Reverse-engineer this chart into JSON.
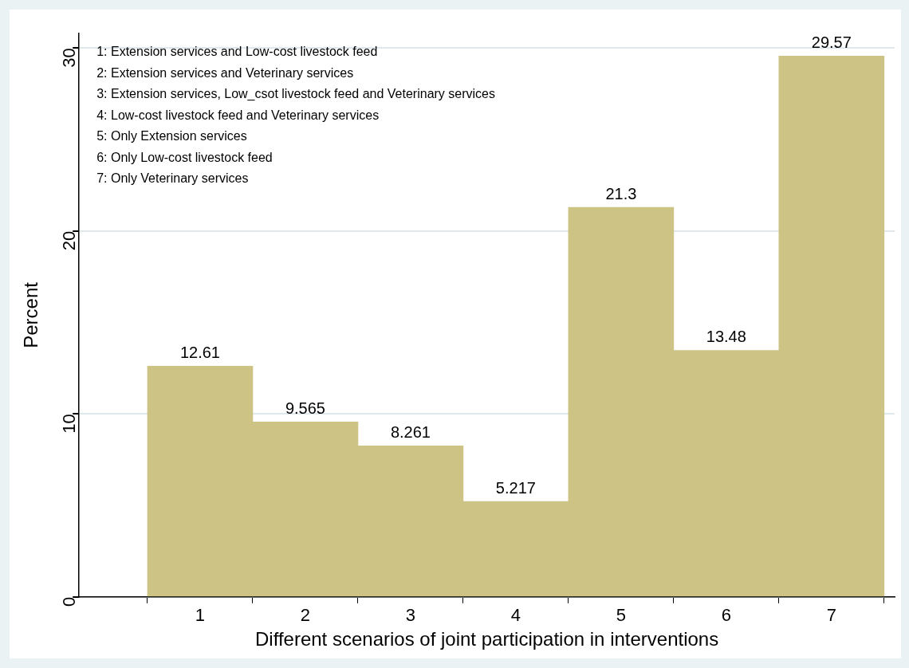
{
  "chart_data": {
    "type": "histogram",
    "xlabel": "Different scenarios of joint participation in interventions",
    "ylabel": "Percent",
    "bins": [
      0.5,
      1.5,
      2.5,
      3.5,
      4.5,
      5.5,
      6.5,
      7.5
    ],
    "values": [
      12.61,
      9.565,
      8.261,
      5.217,
      21.3,
      13.48,
      29.57
    ],
    "color": "#ccc384",
    "data_labels": true,
    "xlim": [
      -0.15,
      7.6
    ],
    "xticks": [
      1,
      2,
      3,
      4,
      5,
      6,
      7
    ],
    "ylim": [
      0,
      30.8
    ],
    "yticks": [
      0,
      10,
      20,
      30
    ],
    "grid": "y",
    "legend": false,
    "annotations": [
      "1: Extension services and Low-cost livestock feed",
      "2: Extension services and Veterinary services",
      "3: Extension services, Low_csot livestock feed and Veterinary services",
      "4: Low-cost livestock feed and Veterinary services",
      "5: Only Extension services",
      "6: Only Low-cost livestock feed",
      "7: Only Veterinary services"
    ]
  }
}
